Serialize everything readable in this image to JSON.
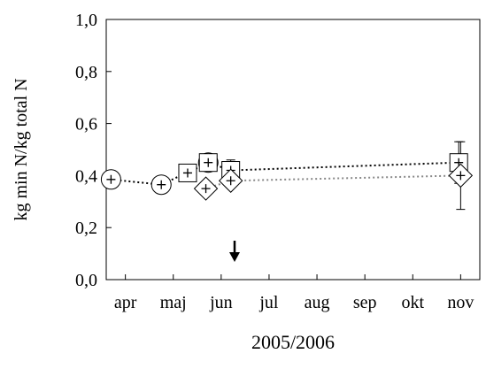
{
  "chart_data": {
    "type": "scatter",
    "y_label": "kg min N/kg total N",
    "x_label": "2005/2006",
    "xlim": [
      -0.4,
      7.4
    ],
    "xticks": [
      {
        "value": 0,
        "label": "apr"
      },
      {
        "value": 1,
        "label": "maj"
      },
      {
        "value": 2,
        "label": "jun"
      },
      {
        "value": 3,
        "label": "jul"
      },
      {
        "value": 4,
        "label": "aug"
      },
      {
        "value": 5,
        "label": "sep"
      },
      {
        "value": 6,
        "label": "okt"
      },
      {
        "value": 7,
        "label": "nov"
      }
    ],
    "ylim": [
      0,
      1
    ],
    "yticks": [
      {
        "value": 0,
        "label": "0,0"
      },
      {
        "value": 0.2,
        "label": "0,2"
      },
      {
        "value": 0.4,
        "label": "0,4"
      },
      {
        "value": 0.6,
        "label": "0,6"
      },
      {
        "value": 0.8,
        "label": "0,8"
      },
      {
        "value": 1,
        "label": "1,0"
      }
    ],
    "series": [
      {
        "marker": "circle",
        "color": "#000000",
        "x": [
          -0.3,
          0.75,
          1.73
        ],
        "values": [
          0.385,
          0.365,
          0.45
        ],
        "errors": [
          null,
          null,
          null
        ]
      },
      {
        "marker": "square",
        "color": "#000000",
        "x": [
          1.3,
          1.73,
          2.2,
          6.96
        ],
        "values": [
          0.41,
          0.45,
          0.42,
          0.45
        ],
        "errors": [
          null,
          null,
          0.04,
          0.08
        ]
      },
      {
        "marker": "diamond",
        "color": "#888888",
        "x": [
          1.68,
          2.2,
          7.0
        ],
        "values": [
          0.35,
          0.38,
          0.4
        ],
        "errors": [
          null,
          null,
          0.13
        ]
      }
    ]
  }
}
